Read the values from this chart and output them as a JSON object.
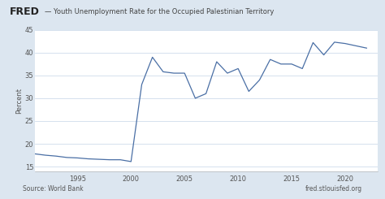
{
  "title": "Youth Unemployment Rate for the Occupied Palestinian Territory",
  "ylabel": "Percent",
  "source_left": "Source: World Bank",
  "source_right": "fred.stlouisfed.org",
  "line_color": "#4a6fa5",
  "background_color": "#dce6f0",
  "plot_bg_color": "#ffffff",
  "header_bg_color": "#dce6f0",
  "ylim": [
    14,
    45
  ],
  "yticks": [
    15,
    20,
    25,
    30,
    35,
    40,
    45
  ],
  "xlim": [
    1991,
    2023
  ],
  "xticks": [
    1995,
    2000,
    2005,
    2010,
    2015,
    2020
  ],
  "years": [
    1991,
    1992,
    1993,
    1994,
    1995,
    1996,
    1997,
    1998,
    1999,
    2000,
    2001,
    2002,
    2003,
    2004,
    2005,
    2006,
    2007,
    2008,
    2009,
    2010,
    2011,
    2012,
    2013,
    2014,
    2015,
    2016,
    2017,
    2018,
    2019,
    2020,
    2021,
    2022
  ],
  "values": [
    17.8,
    17.5,
    17.3,
    17.0,
    16.9,
    16.7,
    16.6,
    16.5,
    16.5,
    16.1,
    33.0,
    39.0,
    35.8,
    35.5,
    35.5,
    30.0,
    31.0,
    38.0,
    35.5,
    36.5,
    31.5,
    34.0,
    38.5,
    37.5,
    37.5,
    36.5,
    42.2,
    39.5,
    42.3,
    42.0,
    41.5,
    41.0
  ],
  "fred_fontsize": 9,
  "title_fontsize": 6.0,
  "tick_fontsize": 6.0,
  "ylabel_fontsize": 6.0,
  "source_fontsize": 5.5,
  "grid_color": "#c5d5e8",
  "tick_color": "#555555",
  "spine_color": "#aaaaaa"
}
